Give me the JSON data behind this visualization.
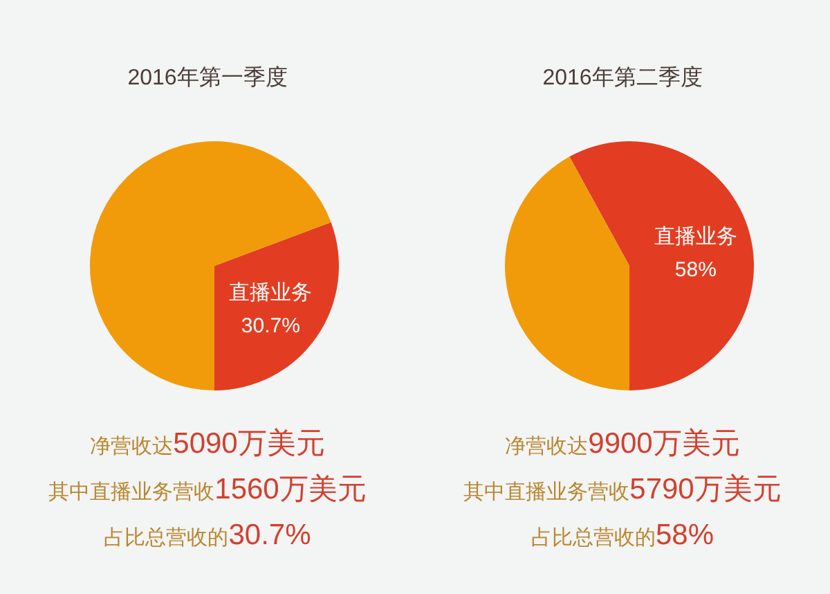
{
  "chart_data": [
    {
      "type": "pie",
      "title": "2016年第一季度",
      "categories": [
        "直播业务",
        null
      ],
      "values": [
        30.7,
        69.3
      ],
      "colors": [
        "#e23d22",
        "#f19b0a"
      ],
      "value_labels": [
        "30.7%",
        null
      ],
      "legend": false,
      "annotations": [
        "净营收达5090万美元",
        "其中直播业务营收1560万美元",
        "占比总营收的30.7%"
      ]
    },
    {
      "type": "pie",
      "title": "2016年第二季度",
      "categories": [
        "直播业务",
        null
      ],
      "values": [
        58,
        42
      ],
      "colors": [
        "#e23d22",
        "#f19b0a"
      ],
      "value_labels": [
        "58%",
        null
      ],
      "legend": false,
      "annotations": [
        "净营收达9900万美元",
        "其中直播业务营收5790万美元",
        "占比总营收的58%"
      ]
    }
  ]
}
